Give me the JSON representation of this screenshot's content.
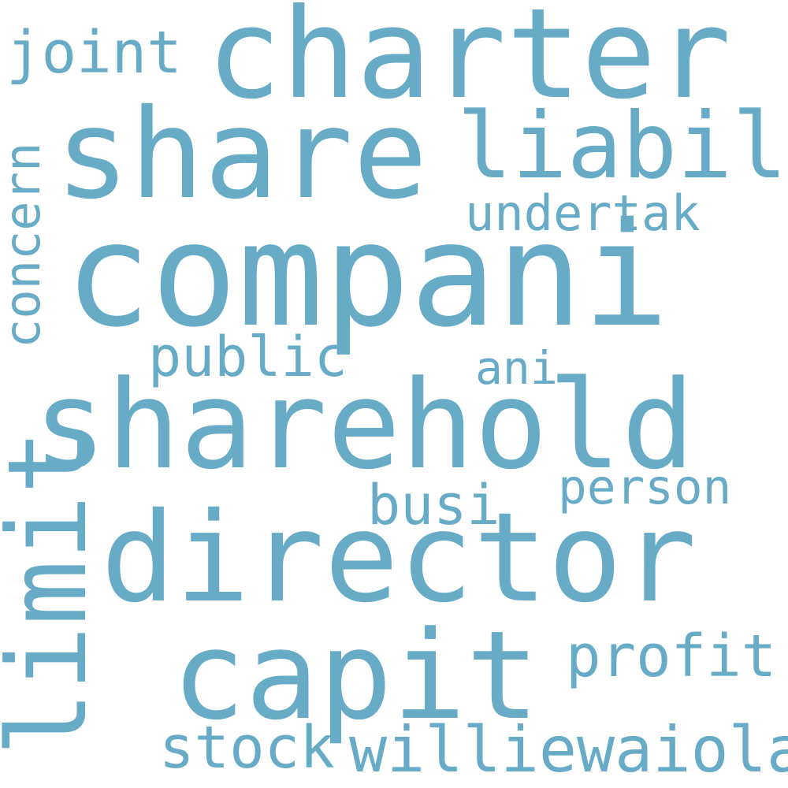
{
  "word_cloud": {
    "text_color": "#67abc7",
    "background_color": "#ffffff",
    "words": {
      "compani": "compani",
      "charter": "charter",
      "share": "share",
      "shareh": "sharehold",
      "director": "director",
      "capit": "capit",
      "liabil": "liabil",
      "limit": "limit",
      "joint": "joint",
      "concern": "concern",
      "undertak": "undertak",
      "public": "public",
      "ani": "ani",
      "person": "person",
      "busi": "busi",
      "profit": "profit",
      "stock": "stock",
      "williewaiola": "williewaiola"
    }
  }
}
